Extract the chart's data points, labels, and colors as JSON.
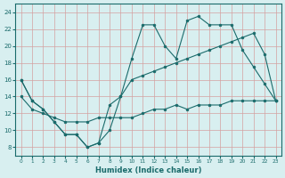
{
  "xlabel": "Humidex (Indice chaleur)",
  "bg_color": "#d8eff0",
  "grid_color": "#c8e0e0",
  "line_color": "#1a6b6b",
  "xlim": [
    -0.5,
    23.5
  ],
  "ylim": [
    7,
    25
  ],
  "yticks": [
    8,
    10,
    12,
    14,
    16,
    18,
    20,
    22,
    24
  ],
  "xticks": [
    0,
    1,
    2,
    3,
    4,
    5,
    6,
    7,
    8,
    9,
    10,
    11,
    12,
    13,
    14,
    15,
    16,
    17,
    18,
    19,
    20,
    21,
    22,
    23
  ],
  "series": [
    {
      "x": [
        0,
        1,
        2,
        3,
        4,
        5,
        6,
        7,
        8,
        9,
        10,
        11,
        12,
        13,
        14,
        15,
        16,
        17,
        18,
        19,
        20,
        21,
        22,
        23
      ],
      "y": [
        16,
        13.5,
        12.5,
        11,
        9.5,
        9.5,
        8,
        8.5,
        10,
        14,
        18.5,
        22.5,
        22.5,
        20,
        18.5,
        23,
        23.5,
        22.5,
        22.5,
        22.5,
        19.5,
        17.5,
        15.5,
        13.5
      ]
    },
    {
      "x": [
        0,
        1,
        2,
        3,
        4,
        5,
        6,
        7,
        8,
        9,
        10,
        11,
        12,
        13,
        14,
        15,
        16,
        17,
        18,
        19,
        20,
        21,
        22,
        23
      ],
      "y": [
        16,
        13.5,
        12.5,
        11,
        9.5,
        9.5,
        8,
        8.5,
        13,
        14,
        16,
        16.5,
        17,
        17.5,
        18,
        18.5,
        19,
        19.5,
        20,
        20.5,
        21,
        21.5,
        19,
        13.5
      ]
    },
    {
      "x": [
        0,
        1,
        2,
        3,
        4,
        5,
        6,
        7,
        8,
        9,
        10,
        11,
        12,
        13,
        14,
        15,
        16,
        17,
        18,
        19,
        20,
        21,
        22,
        23
      ],
      "y": [
        14,
        12.5,
        12,
        11.5,
        11,
        11,
        11,
        11.5,
        11.5,
        11.5,
        11.5,
        12,
        12.5,
        12.5,
        13,
        12.5,
        13,
        13,
        13,
        13.5,
        13.5,
        13.5,
        13.5,
        13.5
      ]
    }
  ]
}
